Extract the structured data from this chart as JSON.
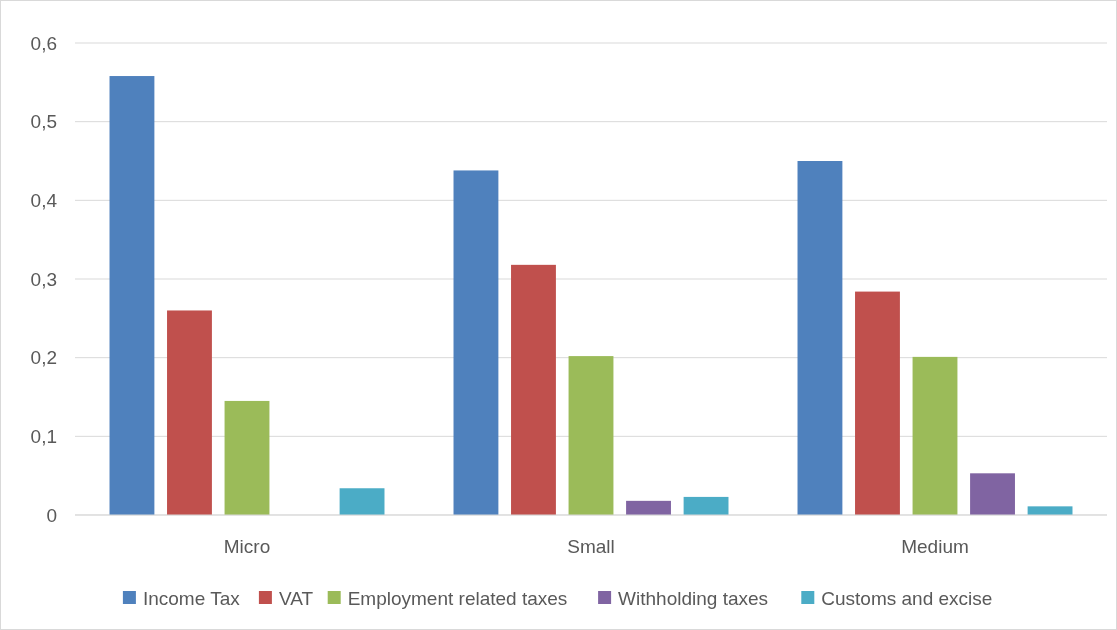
{
  "chart_data": {
    "type": "bar",
    "categories": [
      "Micro",
      "Small",
      "Medium"
    ],
    "series": [
      {
        "name": "Income Tax",
        "color": "#4f81bd",
        "values": [
          0.558,
          0.438,
          0.45
        ]
      },
      {
        "name": "VAT",
        "color": "#c0504d",
        "values": [
          0.26,
          0.318,
          0.284
        ]
      },
      {
        "name": "Employment related taxes",
        "color": "#9bbb59",
        "values": [
          0.145,
          0.202,
          0.201
        ]
      },
      {
        "name": "Withholding taxes",
        "color": "#8064a2",
        "values": [
          0,
          0.018,
          0.053
        ]
      },
      {
        "name": "Customs and excise",
        "color": "#4bacc6",
        "values": [
          0.034,
          0.023,
          0.011
        ]
      }
    ],
    "ylim": [
      0,
      0.6
    ],
    "yticks": [
      {
        "value": 0,
        "label": "0"
      },
      {
        "value": 0.1,
        "label": "0,1"
      },
      {
        "value": 0.2,
        "label": "0,2"
      },
      {
        "value": 0.3,
        "label": "0,3"
      },
      {
        "value": 0.4,
        "label": "0,4"
      },
      {
        "value": 0.5,
        "label": "0,5"
      },
      {
        "value": 0.6,
        "label": "0,6"
      }
    ],
    "grid": "y",
    "legend": "bottom"
  }
}
